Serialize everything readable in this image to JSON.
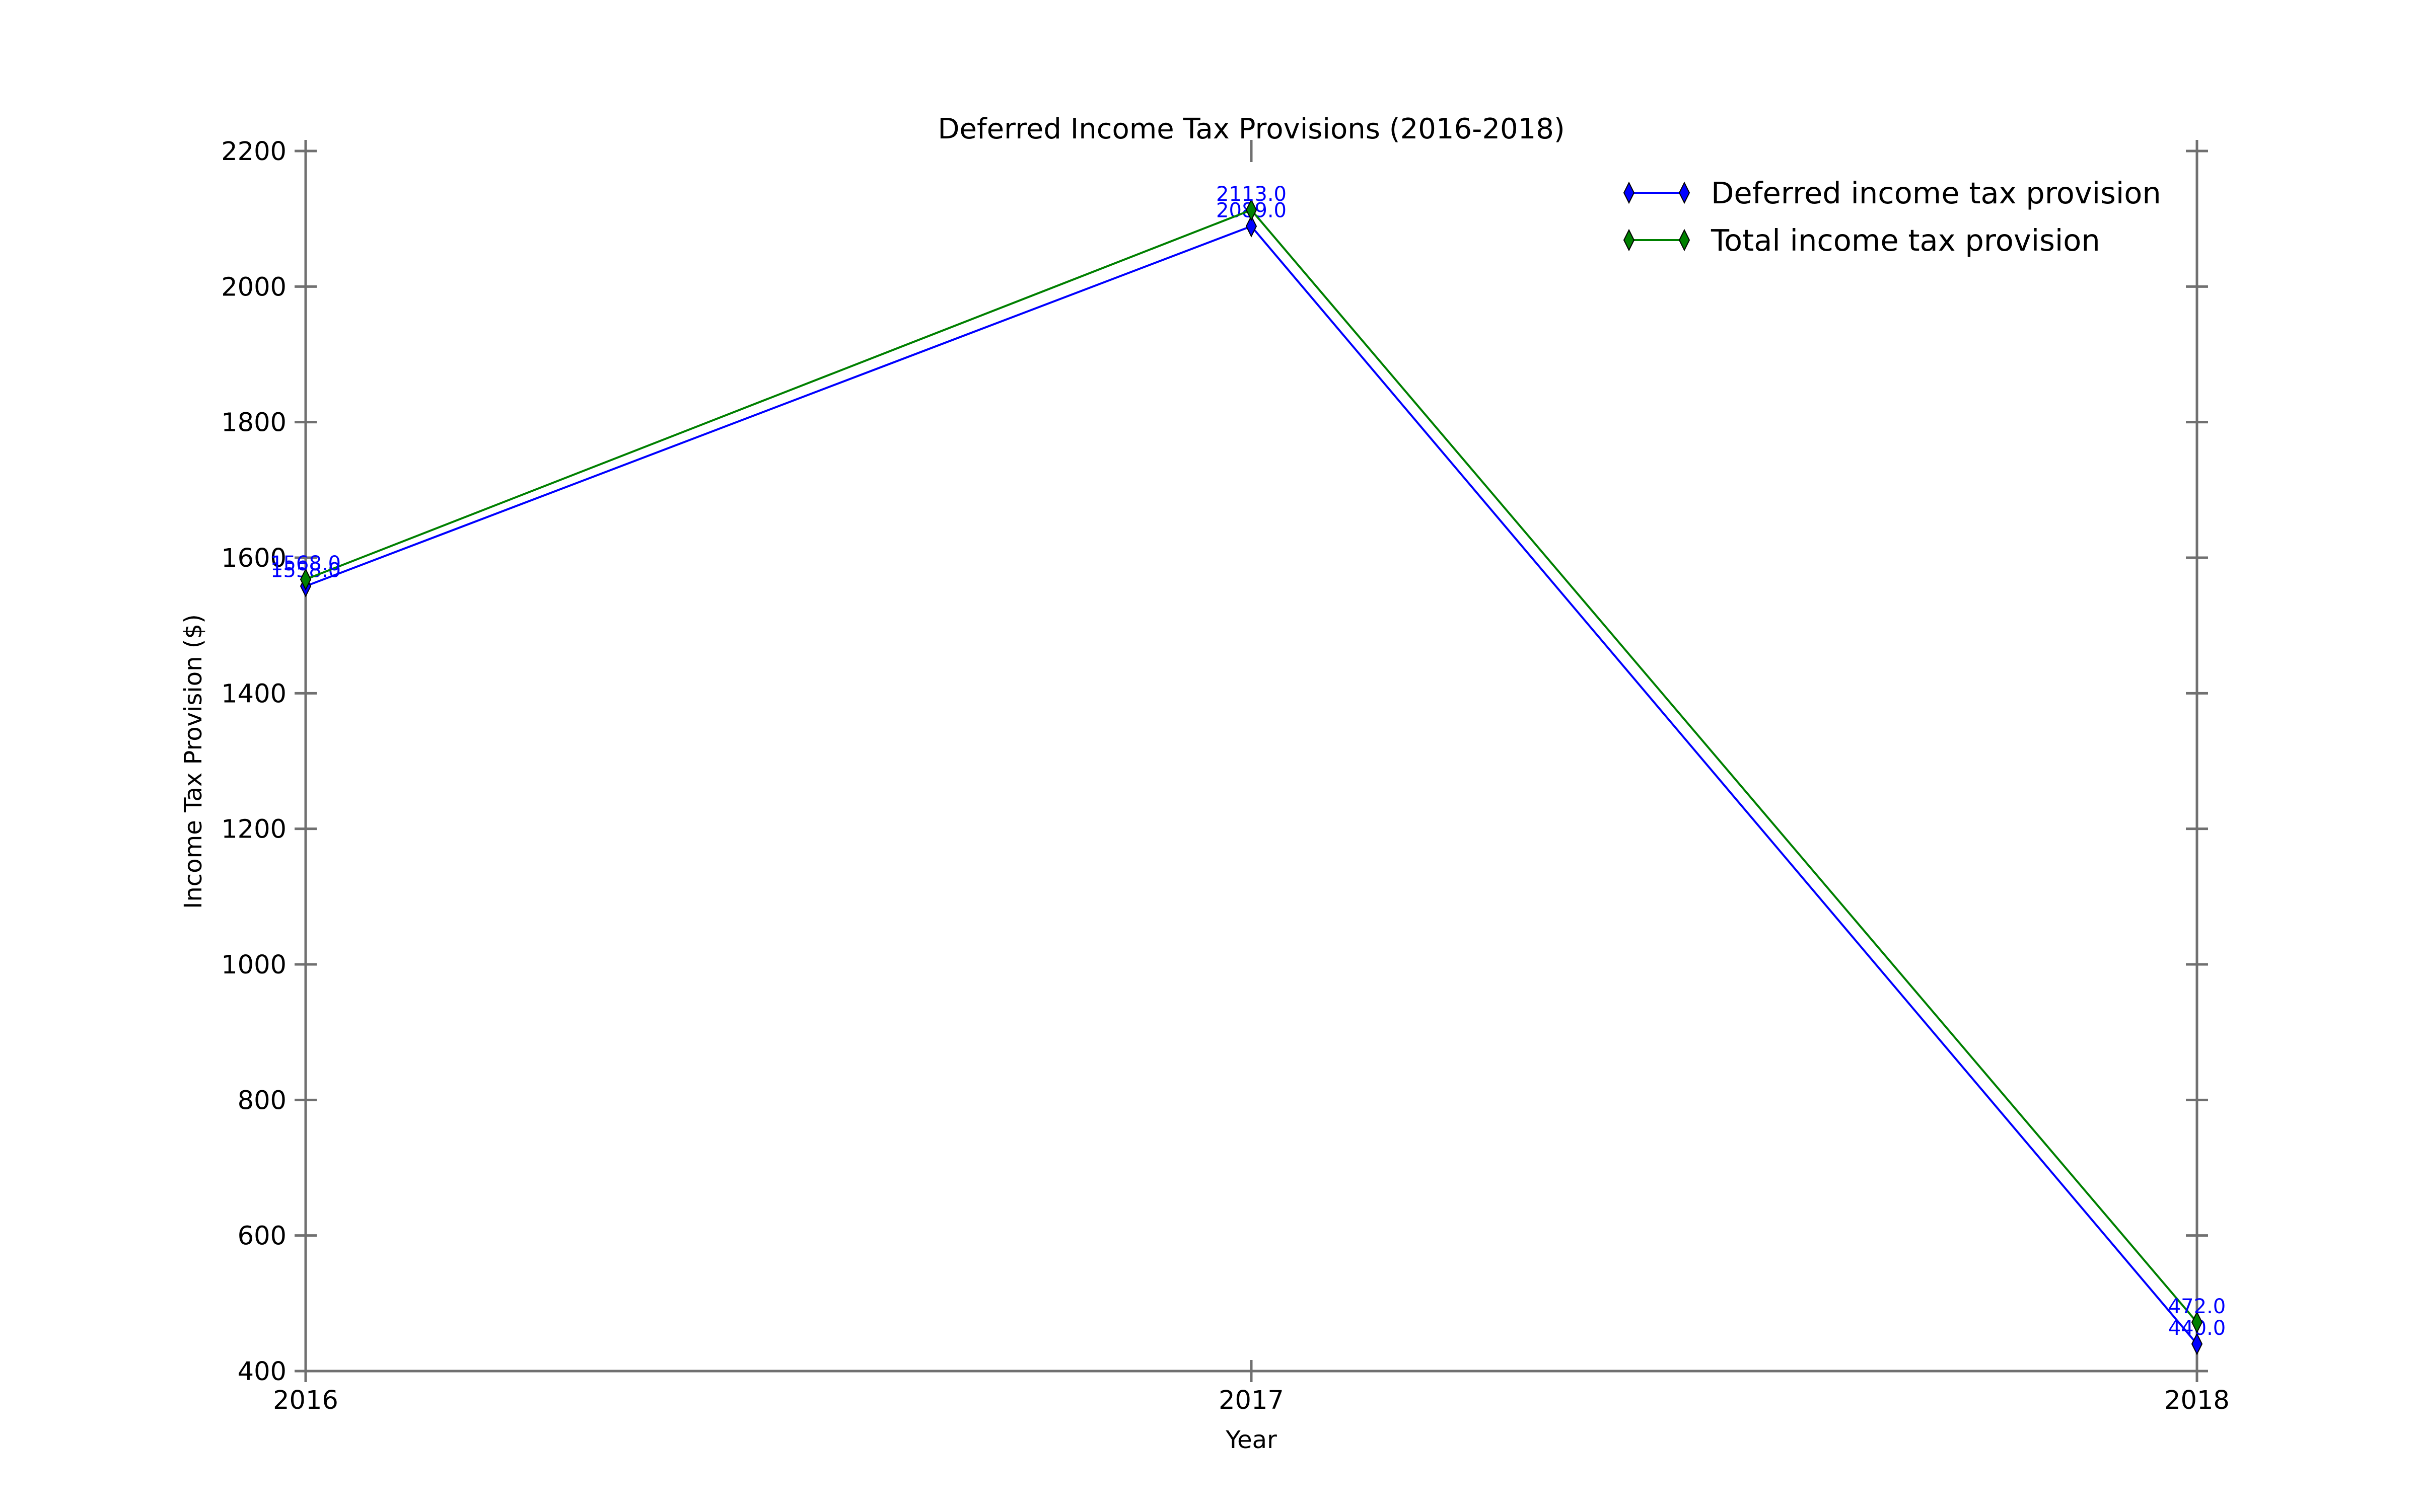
{
  "chart_data": {
    "type": "line",
    "title": "Deferred Income Tax Provisions (2016-2018)",
    "xlabel": "Year",
    "ylabel": "Income Tax Provision ($)",
    "categories": [
      "2016",
      "2017",
      "2018"
    ],
    "ylim": [
      400,
      2200
    ],
    "yticks": [
      400,
      600,
      800,
      1000,
      1200,
      1400,
      1600,
      1800,
      2000,
      2200
    ],
    "grid": false,
    "legend_position": "top-right",
    "series": [
      {
        "name": "Deferred income tax provision",
        "values": [
          1558,
          2089,
          440
        ],
        "labels": [
          "1558.0",
          "2089.0",
          "440.0"
        ],
        "color": "#0000ff",
        "marker": "thin-diamond"
      },
      {
        "name": "Total income tax provision",
        "values": [
          1568,
          2113,
          472
        ],
        "labels": [
          "1568.0",
          "2113.0",
          "472.0"
        ],
        "color": "#008000",
        "marker": "thin-diamond"
      }
    ],
    "data_label_color": "#0000ff"
  }
}
